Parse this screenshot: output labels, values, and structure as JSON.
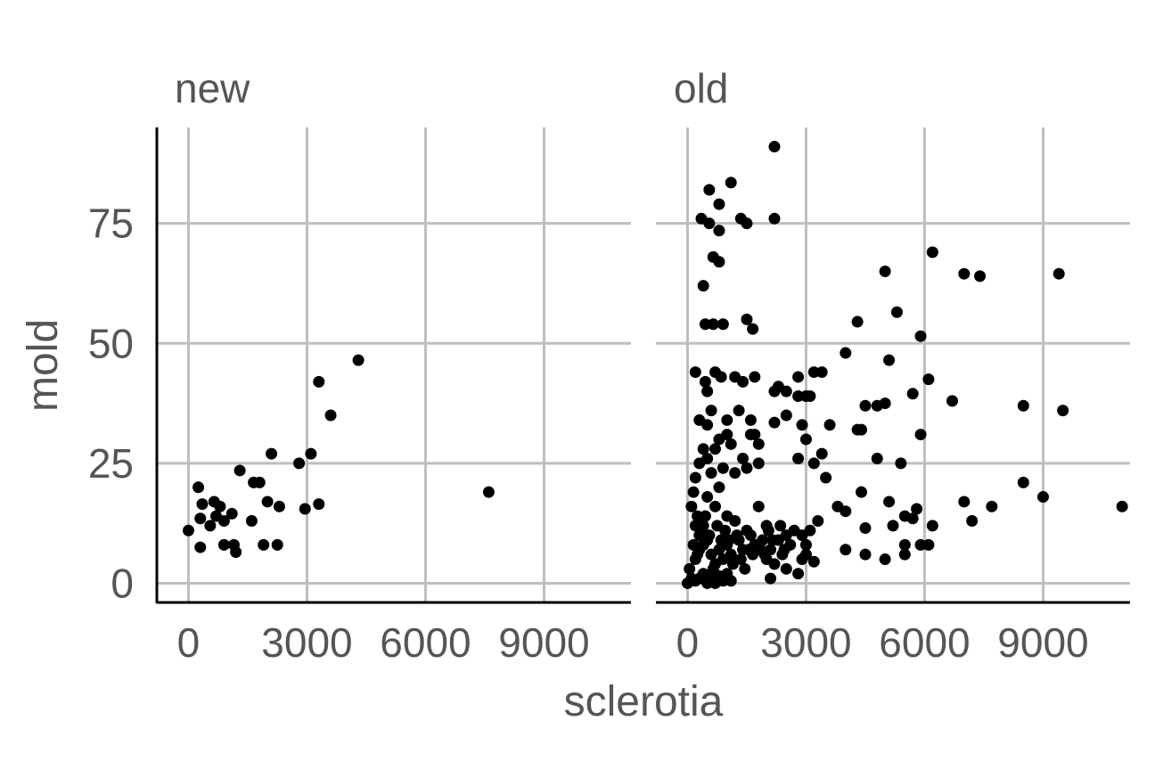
{
  "chart_data": {
    "type": "scatter",
    "xlabel": "sclerotia",
    "ylabel": "mold",
    "xlim": [
      -800,
      11200
    ],
    "ylim": [
      -4,
      95
    ],
    "x_ticks": [
      0,
      3000,
      6000,
      9000
    ],
    "x_tick_labels": [
      "0",
      "3000",
      "6000",
      "9000"
    ],
    "y_ticks": [
      0,
      25,
      50,
      75
    ],
    "y_tick_labels": [
      "0",
      "25",
      "50",
      "75"
    ],
    "grid": true,
    "legend": "none",
    "point_color": "#000000",
    "panels": [
      {
        "label": "new",
        "points": [
          [
            0,
            11
          ],
          [
            250,
            20
          ],
          [
            350,
            16.5
          ],
          [
            300,
            13.5
          ],
          [
            550,
            12
          ],
          [
            650,
            17
          ],
          [
            800,
            16
          ],
          [
            700,
            14
          ],
          [
            900,
            13
          ],
          [
            1100,
            14.5
          ],
          [
            300,
            7.5
          ],
          [
            900,
            8
          ],
          [
            1150,
            8
          ],
          [
            1200,
            6.5
          ],
          [
            1300,
            23.5
          ],
          [
            1600,
            13
          ],
          [
            1650,
            21
          ],
          [
            1800,
            21
          ],
          [
            2000,
            17
          ],
          [
            1900,
            8
          ],
          [
            2100,
            27
          ],
          [
            2300,
            16
          ],
          [
            2250,
            8
          ],
          [
            2800,
            25
          ],
          [
            2950,
            15.5
          ],
          [
            3100,
            27
          ],
          [
            3300,
            42
          ],
          [
            3300,
            16.5
          ],
          [
            3600,
            35
          ],
          [
            4300,
            46.5
          ],
          [
            7600,
            19
          ]
        ]
      },
      {
        "label": "old",
        "points": [
          [
            2200,
            91
          ],
          [
            550,
            82
          ],
          [
            1100,
            83.5
          ],
          [
            800,
            79
          ],
          [
            350,
            76
          ],
          [
            550,
            75
          ],
          [
            800,
            73.5
          ],
          [
            1350,
            76
          ],
          [
            1500,
            75
          ],
          [
            2200,
            76
          ],
          [
            650,
            68
          ],
          [
            800,
            67
          ],
          [
            400,
            62
          ],
          [
            450,
            54
          ],
          [
            650,
            54
          ],
          [
            900,
            54
          ],
          [
            1500,
            55
          ],
          [
            1650,
            53
          ],
          [
            6200,
            69
          ],
          [
            5000,
            65
          ],
          [
            7000,
            64.5
          ],
          [
            7400,
            64
          ],
          [
            9400,
            64.5
          ],
          [
            5300,
            56.5
          ],
          [
            4300,
            54.5
          ],
          [
            5900,
            51.5
          ],
          [
            4000,
            48
          ],
          [
            5100,
            46.5
          ],
          [
            6100,
            42.5
          ],
          [
            5700,
            39.5
          ],
          [
            6700,
            38
          ],
          [
            5000,
            37.5
          ],
          [
            4500,
            37
          ],
          [
            4800,
            37
          ],
          [
            8500,
            37
          ],
          [
            9500,
            36
          ],
          [
            4300,
            32
          ],
          [
            4400,
            32
          ],
          [
            3600,
            33
          ],
          [
            5900,
            31
          ],
          [
            4800,
            26
          ],
          [
            5400,
            25
          ],
          [
            3500,
            22
          ],
          [
            3800,
            16
          ],
          [
            4000,
            15
          ],
          [
            4400,
            19
          ],
          [
            5100,
            17
          ],
          [
            5800,
            15.5
          ],
          [
            7000,
            17
          ],
          [
            7700,
            16
          ],
          [
            8500,
            21
          ],
          [
            9000,
            18
          ],
          [
            11000,
            16
          ],
          [
            7200,
            13
          ],
          [
            6200,
            12
          ],
          [
            4500,
            11.5
          ],
          [
            5200,
            12
          ],
          [
            5500,
            14
          ],
          [
            5700,
            13.5
          ],
          [
            5500,
            8
          ],
          [
            5900,
            8
          ],
          [
            6100,
            8
          ],
          [
            4000,
            7
          ],
          [
            4500,
            6
          ],
          [
            5000,
            5
          ],
          [
            5500,
            6
          ],
          [
            200,
            44
          ],
          [
            450,
            42
          ],
          [
            700,
            44
          ],
          [
            850,
            43
          ],
          [
            1200,
            43
          ],
          [
            1700,
            43
          ],
          [
            2300,
            41
          ],
          [
            2500,
            40
          ],
          [
            2800,
            43
          ],
          [
            3200,
            44
          ],
          [
            3400,
            44
          ],
          [
            500,
            40
          ],
          [
            2200,
            40
          ],
          [
            3000,
            39
          ],
          [
            2800,
            39
          ],
          [
            3100,
            39
          ],
          [
            1400,
            42
          ],
          [
            300,
            34
          ],
          [
            600,
            36
          ],
          [
            500,
            33
          ],
          [
            1000,
            34
          ],
          [
            1300,
            36
          ],
          [
            1600,
            34
          ],
          [
            2200,
            33.5
          ],
          [
            2500,
            35
          ],
          [
            2900,
            33
          ],
          [
            3200,
            25
          ],
          [
            3000,
            30
          ],
          [
            3400,
            27
          ],
          [
            200,
            22
          ],
          [
            300,
            25
          ],
          [
            500,
            26
          ],
          [
            700,
            28
          ],
          [
            800,
            30
          ],
          [
            1000,
            31
          ],
          [
            1100,
            29
          ],
          [
            400,
            28
          ],
          [
            600,
            23
          ],
          [
            900,
            24
          ],
          [
            1200,
            23
          ],
          [
            1400,
            26
          ],
          [
            1500,
            24
          ],
          [
            1800,
            25
          ],
          [
            1700,
            31
          ],
          [
            1800,
            29
          ],
          [
            1600,
            31
          ],
          [
            2800,
            26
          ],
          [
            100,
            16
          ],
          [
            150,
            19
          ],
          [
            200,
            12
          ],
          [
            250,
            14
          ],
          [
            300,
            10
          ],
          [
            400,
            12
          ],
          [
            500,
            18
          ],
          [
            700,
            16
          ],
          [
            800,
            20
          ],
          [
            1000,
            14
          ],
          [
            1200,
            13
          ],
          [
            1500,
            11
          ],
          [
            1800,
            16
          ],
          [
            2000,
            12
          ],
          [
            2300,
            9
          ],
          [
            2500,
            10
          ],
          [
            2600,
            8
          ],
          [
            2700,
            11
          ],
          [
            2900,
            10
          ],
          [
            3000,
            8
          ],
          [
            3100,
            11
          ],
          [
            3300,
            13
          ],
          [
            200,
            5
          ],
          [
            300,
            7
          ],
          [
            400,
            8
          ],
          [
            500,
            9
          ],
          [
            600,
            6
          ],
          [
            700,
            4
          ],
          [
            800,
            7
          ],
          [
            900,
            5
          ],
          [
            1000,
            8
          ],
          [
            1100,
            6
          ],
          [
            1300,
            9
          ],
          [
            1400,
            7
          ],
          [
            1600,
            10
          ],
          [
            1700,
            8
          ],
          [
            1900,
            9
          ],
          [
            2000,
            5
          ],
          [
            2100,
            7
          ],
          [
            2200,
            4
          ],
          [
            2400,
            6
          ],
          [
            2500,
            3
          ],
          [
            2800,
            2
          ],
          [
            2900,
            5
          ],
          [
            3000,
            6
          ],
          [
            3200,
            4.5
          ],
          [
            2100,
            1
          ],
          [
            0,
            0
          ],
          [
            100,
            1
          ],
          [
            200,
            0.5
          ],
          [
            300,
            1
          ],
          [
            400,
            2
          ],
          [
            500,
            0
          ],
          [
            600,
            1
          ],
          [
            700,
            0
          ],
          [
            800,
            1.5
          ],
          [
            900,
            0.5
          ],
          [
            1000,
            2
          ],
          [
            1100,
            0.5
          ],
          [
            50,
            3
          ],
          [
            150,
            8
          ],
          [
            250,
            6
          ],
          [
            350,
            11
          ],
          [
            450,
            14
          ],
          [
            550,
            10
          ],
          [
            650,
            3
          ],
          [
            750,
            12
          ],
          [
            850,
            9
          ],
          [
            950,
            11
          ],
          [
            1050,
            9
          ],
          [
            1150,
            4
          ],
          [
            1250,
            10
          ],
          [
            1350,
            5
          ],
          [
            1450,
            3
          ],
          [
            1550,
            7
          ],
          [
            1650,
            6
          ],
          [
            1750,
            8
          ],
          [
            1850,
            7
          ],
          [
            1950,
            6
          ],
          [
            2050,
            11
          ],
          [
            2150,
            9
          ],
          [
            2350,
            12
          ],
          [
            2450,
            7
          ]
        ]
      }
    ]
  }
}
